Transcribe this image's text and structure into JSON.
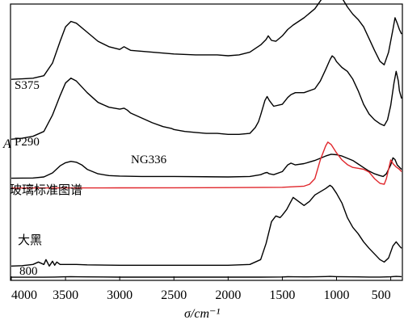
{
  "chart_data": {
    "type": "line",
    "xlabel": "σ/cm⁻¹",
    "ylabel": "A",
    "xlim": [
      4000,
      400
    ],
    "x_reversed": true,
    "xticks": [
      4000,
      3500,
      3000,
      2500,
      2000,
      1500,
      1000,
      500
    ],
    "grid": false,
    "series": [
      {
        "name": "S375",
        "color": "#000000",
        "baseline": 0.73,
        "points": [
          [
            4000,
            0
          ],
          [
            3900,
            0.005
          ],
          [
            3800,
            0.012
          ],
          [
            3700,
            0.04
          ],
          [
            3620,
            0.18
          ],
          [
            3550,
            0.42
          ],
          [
            3500,
            0.58
          ],
          [
            3450,
            0.64
          ],
          [
            3400,
            0.62
          ],
          [
            3300,
            0.52
          ],
          [
            3200,
            0.42
          ],
          [
            3100,
            0.36
          ],
          [
            3000,
            0.33
          ],
          [
            2960,
            0.36
          ],
          [
            2930,
            0.34
          ],
          [
            2900,
            0.32
          ],
          [
            2800,
            0.31
          ],
          [
            2700,
            0.3
          ],
          [
            2500,
            0.28
          ],
          [
            2300,
            0.27
          ],
          [
            2100,
            0.27
          ],
          [
            2000,
            0.26
          ],
          [
            1900,
            0.27
          ],
          [
            1800,
            0.3
          ],
          [
            1700,
            0.38
          ],
          [
            1650,
            0.44
          ],
          [
            1630,
            0.48
          ],
          [
            1600,
            0.43
          ],
          [
            1560,
            0.42
          ],
          [
            1500,
            0.48
          ],
          [
            1450,
            0.55
          ],
          [
            1400,
            0.6
          ],
          [
            1300,
            0.68
          ],
          [
            1200,
            0.78
          ],
          [
            1100,
            0.95
          ],
          [
            1050,
            1.0
          ],
          [
            1000,
            0.97
          ],
          [
            950,
            0.9
          ],
          [
            900,
            0.8
          ],
          [
            850,
            0.72
          ],
          [
            800,
            0.66
          ],
          [
            750,
            0.58
          ],
          [
            700,
            0.45
          ],
          [
            650,
            0.32
          ],
          [
            600,
            0.2
          ],
          [
            560,
            0.16
          ],
          [
            520,
            0.3
          ],
          [
            480,
            0.55
          ],
          [
            460,
            0.68
          ],
          [
            440,
            0.62
          ],
          [
            420,
            0.55
          ],
          [
            400,
            0.5
          ]
        ]
      },
      {
        "name": "P290",
        "color": "#000000",
        "baseline": 0.515,
        "points": [
          [
            4000,
            0
          ],
          [
            3900,
            0.01
          ],
          [
            3800,
            0.03
          ],
          [
            3700,
            0.08
          ],
          [
            3620,
            0.25
          ],
          [
            3550,
            0.45
          ],
          [
            3500,
            0.58
          ],
          [
            3450,
            0.63
          ],
          [
            3400,
            0.6
          ],
          [
            3300,
            0.48
          ],
          [
            3200,
            0.38
          ],
          [
            3100,
            0.33
          ],
          [
            3000,
            0.31
          ],
          [
            2960,
            0.32
          ],
          [
            2930,
            0.3
          ],
          [
            2900,
            0.27
          ],
          [
            2800,
            0.22
          ],
          [
            2700,
            0.17
          ],
          [
            2600,
            0.13
          ],
          [
            2520,
            0.11
          ],
          [
            2500,
            0.1
          ],
          [
            2400,
            0.08
          ],
          [
            2300,
            0.07
          ],
          [
            2200,
            0.06
          ],
          [
            2100,
            0.06
          ],
          [
            2000,
            0.05
          ],
          [
            1900,
            0.05
          ],
          [
            1800,
            0.06
          ],
          [
            1750,
            0.12
          ],
          [
            1720,
            0.18
          ],
          [
            1700,
            0.25
          ],
          [
            1660,
            0.4
          ],
          [
            1640,
            0.44
          ],
          [
            1620,
            0.4
          ],
          [
            1580,
            0.34
          ],
          [
            1500,
            0.36
          ],
          [
            1450,
            0.43
          ],
          [
            1420,
            0.46
          ],
          [
            1380,
            0.48
          ],
          [
            1300,
            0.48
          ],
          [
            1200,
            0.52
          ],
          [
            1150,
            0.6
          ],
          [
            1100,
            0.72
          ],
          [
            1060,
            0.82
          ],
          [
            1040,
            0.86
          ],
          [
            1020,
            0.84
          ],
          [
            1000,
            0.8
          ],
          [
            950,
            0.74
          ],
          [
            900,
            0.7
          ],
          [
            850,
            0.62
          ],
          [
            800,
            0.5
          ],
          [
            750,
            0.36
          ],
          [
            700,
            0.26
          ],
          [
            650,
            0.2
          ],
          [
            600,
            0.16
          ],
          [
            560,
            0.14
          ],
          [
            530,
            0.2
          ],
          [
            500,
            0.35
          ],
          [
            470,
            0.58
          ],
          [
            450,
            0.7
          ],
          [
            430,
            0.6
          ],
          [
            420,
            0.5
          ],
          [
            400,
            0.42
          ]
        ]
      },
      {
        "name": "NG336",
        "color": "#000000",
        "baseline": 0.375,
        "points": [
          [
            4000,
            0
          ],
          [
            3800,
            0.005
          ],
          [
            3700,
            0.03
          ],
          [
            3620,
            0.12
          ],
          [
            3550,
            0.28
          ],
          [
            3500,
            0.35
          ],
          [
            3450,
            0.38
          ],
          [
            3400,
            0.36
          ],
          [
            3350,
            0.3
          ],
          [
            3300,
            0.2
          ],
          [
            3200,
            0.1
          ],
          [
            3100,
            0.06
          ],
          [
            3000,
            0.05
          ],
          [
            2800,
            0.04
          ],
          [
            2500,
            0.04
          ],
          [
            2000,
            0.03
          ],
          [
            1800,
            0.04
          ],
          [
            1700,
            0.08
          ],
          [
            1660,
            0.12
          ],
          [
            1640,
            0.13
          ],
          [
            1620,
            0.1
          ],
          [
            1580,
            0.08
          ],
          [
            1500,
            0.15
          ],
          [
            1450,
            0.3
          ],
          [
            1420,
            0.34
          ],
          [
            1380,
            0.3
          ],
          [
            1300,
            0.33
          ],
          [
            1200,
            0.4
          ],
          [
            1100,
            0.5
          ],
          [
            1050,
            0.54
          ],
          [
            1000,
            0.53
          ],
          [
            950,
            0.5
          ],
          [
            900,
            0.45
          ],
          [
            850,
            0.4
          ],
          [
            800,
            0.32
          ],
          [
            750,
            0.24
          ],
          [
            700,
            0.16
          ],
          [
            650,
            0.1
          ],
          [
            600,
            0.06
          ],
          [
            570,
            0.04
          ],
          [
            540,
            0.1
          ],
          [
            500,
            0.3
          ],
          [
            480,
            0.46
          ],
          [
            460,
            0.42
          ],
          [
            440,
            0.3
          ],
          [
            400,
            0.2
          ]
        ]
      },
      {
        "name": "玻璃标准图谱",
        "color": "#e0262b",
        "baseline": 0.34,
        "points": [
          [
            4000,
            0
          ],
          [
            3500,
            0.002
          ],
          [
            3000,
            0.004
          ],
          [
            2500,
            0.006
          ],
          [
            2000,
            0.008
          ],
          [
            1500,
            0.015
          ],
          [
            1300,
            0.04
          ],
          [
            1250,
            0.08
          ],
          [
            1200,
            0.2
          ],
          [
            1150,
            0.6
          ],
          [
            1100,
            0.9
          ],
          [
            1080,
            0.98
          ],
          [
            1050,
            0.93
          ],
          [
            1000,
            0.75
          ],
          [
            950,
            0.6
          ],
          [
            900,
            0.5
          ],
          [
            850,
            0.44
          ],
          [
            800,
            0.42
          ],
          [
            750,
            0.4
          ],
          [
            700,
            0.34
          ],
          [
            650,
            0.2
          ],
          [
            600,
            0.1
          ],
          [
            560,
            0.08
          ],
          [
            540,
            0.2
          ],
          [
            520,
            0.4
          ],
          [
            500,
            0.6
          ],
          [
            480,
            0.52
          ],
          [
            450,
            0.45
          ],
          [
            420,
            0.4
          ],
          [
            400,
            0.35
          ]
        ]
      },
      {
        "name": "大黑",
        "color": "#000000",
        "baseline": 0.06,
        "points": [
          [
            4000,
            0
          ],
          [
            3900,
            0.005
          ],
          [
            3800,
            0.02
          ],
          [
            3750,
            0.05
          ],
          [
            3700,
            0.02
          ],
          [
            3680,
            0.08
          ],
          [
            3650,
            0.0
          ],
          [
            3620,
            0.06
          ],
          [
            3600,
            0.01
          ],
          [
            3580,
            0.05
          ],
          [
            3550,
            0.02
          ],
          [
            3500,
            0.02
          ],
          [
            3400,
            0.02
          ],
          [
            3300,
            0.015
          ],
          [
            3000,
            0.01
          ],
          [
            2500,
            0.01
          ],
          [
            2000,
            0.01
          ],
          [
            1800,
            0.02
          ],
          [
            1700,
            0.08
          ],
          [
            1650,
            0.28
          ],
          [
            1600,
            0.55
          ],
          [
            1560,
            0.62
          ],
          [
            1520,
            0.6
          ],
          [
            1500,
            0.63
          ],
          [
            1460,
            0.7
          ],
          [
            1420,
            0.8
          ],
          [
            1400,
            0.85
          ],
          [
            1350,
            0.8
          ],
          [
            1300,
            0.75
          ],
          [
            1250,
            0.8
          ],
          [
            1200,
            0.88
          ],
          [
            1100,
            0.96
          ],
          [
            1060,
            1.0
          ],
          [
            1040,
            0.98
          ],
          [
            1000,
            0.9
          ],
          [
            950,
            0.78
          ],
          [
            900,
            0.6
          ],
          [
            850,
            0.48
          ],
          [
            800,
            0.4
          ],
          [
            750,
            0.3
          ],
          [
            700,
            0.22
          ],
          [
            650,
            0.15
          ],
          [
            600,
            0.08
          ],
          [
            560,
            0.05
          ],
          [
            520,
            0.1
          ],
          [
            480,
            0.25
          ],
          [
            450,
            0.3
          ],
          [
            420,
            0.25
          ],
          [
            400,
            0.22
          ]
        ]
      },
      {
        "name": "800",
        "color": "#000000",
        "baseline": 0.02,
        "points": [
          [
            4000,
            0
          ],
          [
            3700,
            0.002
          ],
          [
            3600,
            0.01
          ],
          [
            3500,
            0.02
          ],
          [
            3450,
            0.025
          ],
          [
            3400,
            0.02
          ],
          [
            3300,
            0.015
          ],
          [
            3000,
            0.005
          ],
          [
            2500,
            0.004
          ],
          [
            2000,
            0.004
          ],
          [
            1700,
            0.005
          ],
          [
            1600,
            0.008
          ],
          [
            1500,
            0.012
          ],
          [
            1450,
            0.025
          ],
          [
            1400,
            0.02
          ],
          [
            1300,
            0.015
          ],
          [
            1200,
            0.02
          ],
          [
            1100,
            0.035
          ],
          [
            1060,
            0.04
          ],
          [
            1000,
            0.03
          ],
          [
            900,
            0.02
          ],
          [
            800,
            0.015
          ],
          [
            700,
            0.01
          ],
          [
            600,
            0.01
          ],
          [
            500,
            0.02
          ],
          [
            450,
            0.04
          ],
          [
            400,
            0.03
          ]
        ]
      }
    ]
  }
}
